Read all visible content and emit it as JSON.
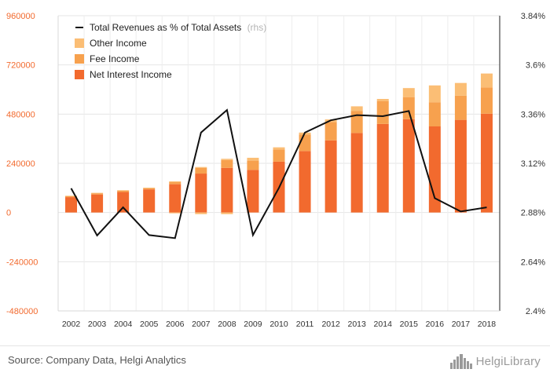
{
  "chart_data": {
    "type": "bar",
    "categories": [
      "2002",
      "2003",
      "2004",
      "2005",
      "2006",
      "2007",
      "2008",
      "2009",
      "2010",
      "2011",
      "2012",
      "2013",
      "2014",
      "2015",
      "2016",
      "2017",
      "2018"
    ],
    "series": [
      {
        "name": "Net Interest Income",
        "type": "bar",
        "axis": "left",
        "color": "#f26a2e",
        "values": [
          75000,
          88000,
          100000,
          113000,
          138000,
          190000,
          218000,
          208000,
          248000,
          300000,
          352000,
          388000,
          432000,
          455000,
          420000,
          452000,
          482000
        ]
      },
      {
        "name": "Fee Income",
        "type": "bar",
        "axis": "left",
        "color": "#f7a14e",
        "values": [
          5000,
          6000,
          7000,
          6000,
          10000,
          28000,
          38000,
          45000,
          60000,
          80000,
          90000,
          108000,
          112000,
          108000,
          118000,
          118000,
          128000
        ]
      },
      {
        "name": "Other Income",
        "type": "bar",
        "axis": "left",
        "color": "#fbbe75",
        "values": [
          2000,
          2000,
          2000,
          2000,
          4000,
          4000,
          6000,
          14000,
          10000,
          10000,
          12000,
          22000,
          10000,
          44000,
          82000,
          62000,
          68000
        ]
      },
      {
        "name": "Other Income (negative)",
        "type": "bar-negative",
        "axis": "left",
        "color": "#fbbe75",
        "values": [
          0,
          0,
          0,
          0,
          -4000,
          -8000,
          -8000,
          0,
          0,
          0,
          0,
          0,
          0,
          0,
          0,
          0,
          0
        ]
      },
      {
        "name": "Total Revenues as % of Total Assets",
        "type": "line",
        "axis": "right",
        "color": "#111111",
        "values": [
          2.998,
          2.768,
          2.905,
          2.77,
          2.755,
          3.27,
          3.38,
          2.77,
          3.0,
          3.27,
          3.33,
          3.355,
          3.35,
          3.375,
          2.95,
          2.885,
          2.905
        ]
      }
    ],
    "y_left": {
      "min": -480000,
      "max": 960000,
      "ticks": [
        "960000",
        "720000",
        "480000",
        "240000",
        "0",
        "-240000",
        "-480000"
      ]
    },
    "y_right": {
      "min": 2.4,
      "max": 3.84,
      "ticks": [
        "3.84%",
        "3.6%",
        "3.36%",
        "3.12%",
        "2.88%",
        "2.64%",
        "2.4%"
      ]
    },
    "grid": true,
    "legend": {
      "placement": "top-left",
      "items": [
        {
          "label": "Total Revenues as % of Total Assets",
          "note": "(rhs)",
          "marker": "line",
          "color": "#111111"
        },
        {
          "label": "Other Income",
          "marker": "box",
          "color": "#fbbe75"
        },
        {
          "label": "Fee Income",
          "marker": "box",
          "color": "#f7a14e"
        },
        {
          "label": "Net Interest Income",
          "marker": "box",
          "color": "#f26a2e"
        }
      ]
    }
  },
  "footer": {
    "source": "Source: Company Data, Helgi Analytics",
    "logo_text": "HelgiLibrary",
    "logo_icon": "city-skyline-icon"
  }
}
